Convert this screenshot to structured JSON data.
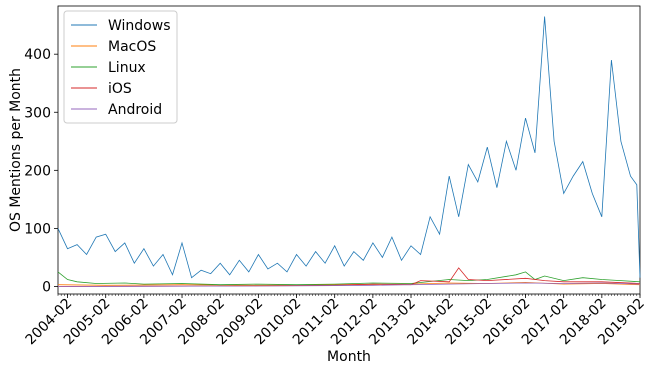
{
  "chart_data": {
    "type": "line",
    "title": "",
    "xlabel": "Month",
    "ylabel": "OS Mentions per Month",
    "x_tick_labels": [
      "2004-02",
      "2005-02",
      "2006-02",
      "2007-02",
      "2008-02",
      "2009-02",
      "2010-02",
      "2011-02",
      "2012-02",
      "2013-02",
      "2014-02",
      "2015-02",
      "2016-02",
      "2017-02",
      "2018-02",
      "2019-02"
    ],
    "x_range": [
      "2003-11",
      "2019-02"
    ],
    "ylim": [
      -13,
      483
    ],
    "y_ticks": [
      0,
      100,
      200,
      300,
      400
    ],
    "legend_position": "top-left",
    "grid": false,
    "series": [
      {
        "name": "Windows",
        "color": "#1f77b4",
        "points": [
          [
            "2003-11",
            100
          ],
          [
            "2004-02",
            65
          ],
          [
            "2004-05",
            72
          ],
          [
            "2004-08",
            55
          ],
          [
            "2004-11",
            85
          ],
          [
            "2005-02",
            90
          ],
          [
            "2005-05",
            60
          ],
          [
            "2005-08",
            75
          ],
          [
            "2005-11",
            40
          ],
          [
            "2006-02",
            65
          ],
          [
            "2006-05",
            35
          ],
          [
            "2006-08",
            55
          ],
          [
            "2006-11",
            20
          ],
          [
            "2007-02",
            75
          ],
          [
            "2007-05",
            15
          ],
          [
            "2007-08",
            28
          ],
          [
            "2007-11",
            22
          ],
          [
            "2008-02",
            40
          ],
          [
            "2008-05",
            20
          ],
          [
            "2008-08",
            45
          ],
          [
            "2008-11",
            25
          ],
          [
            "2009-02",
            55
          ],
          [
            "2009-05",
            30
          ],
          [
            "2009-08",
            40
          ],
          [
            "2009-11",
            25
          ],
          [
            "2010-02",
            55
          ],
          [
            "2010-05",
            35
          ],
          [
            "2010-08",
            60
          ],
          [
            "2010-11",
            40
          ],
          [
            "2011-02",
            70
          ],
          [
            "2011-05",
            35
          ],
          [
            "2011-08",
            60
          ],
          [
            "2011-11",
            45
          ],
          [
            "2012-02",
            75
          ],
          [
            "2012-05",
            50
          ],
          [
            "2012-08",
            85
          ],
          [
            "2012-11",
            45
          ],
          [
            "2013-02",
            70
          ],
          [
            "2013-05",
            55
          ],
          [
            "2013-08",
            120
          ],
          [
            "2013-11",
            90
          ],
          [
            "2014-02",
            190
          ],
          [
            "2014-05",
            120
          ],
          [
            "2014-08",
            210
          ],
          [
            "2014-11",
            180
          ],
          [
            "2015-02",
            240
          ],
          [
            "2015-05",
            170
          ],
          [
            "2015-08",
            250
          ],
          [
            "2015-11",
            200
          ],
          [
            "2016-02",
            290
          ],
          [
            "2016-05",
            230
          ],
          [
            "2016-08",
            465
          ],
          [
            "2016-11",
            250
          ],
          [
            "2017-02",
            160
          ],
          [
            "2017-05",
            190
          ],
          [
            "2017-08",
            215
          ],
          [
            "2017-11",
            160
          ],
          [
            "2018-02",
            120
          ],
          [
            "2018-05",
            390
          ],
          [
            "2018-08",
            250
          ],
          [
            "2018-11",
            190
          ],
          [
            "2019-01",
            175
          ],
          [
            "2019-02",
            15
          ]
        ]
      },
      {
        "name": "MacOS",
        "color": "#ff7f0e",
        "points": [
          [
            "2003-11",
            3
          ],
          [
            "2005-02",
            2
          ],
          [
            "2007-02",
            3
          ],
          [
            "2009-02",
            2
          ],
          [
            "2011-02",
            3
          ],
          [
            "2013-02",
            4
          ],
          [
            "2014-02",
            6
          ],
          [
            "2015-02",
            5
          ],
          [
            "2016-02",
            7
          ],
          [
            "2017-02",
            4
          ],
          [
            "2018-02",
            5
          ],
          [
            "2019-02",
            3
          ]
        ]
      },
      {
        "name": "Linux",
        "color": "#2ca02c",
        "points": [
          [
            "2003-11",
            25
          ],
          [
            "2004-02",
            12
          ],
          [
            "2004-05",
            8
          ],
          [
            "2004-11",
            5
          ],
          [
            "2005-08",
            6
          ],
          [
            "2006-02",
            4
          ],
          [
            "2007-02",
            5
          ],
          [
            "2008-02",
            3
          ],
          [
            "2009-02",
            4
          ],
          [
            "2010-02",
            3
          ],
          [
            "2011-02",
            4
          ],
          [
            "2012-02",
            6
          ],
          [
            "2013-02",
            5
          ],
          [
            "2014-02",
            12
          ],
          [
            "2014-08",
            10
          ],
          [
            "2015-02",
            12
          ],
          [
            "2015-11",
            20
          ],
          [
            "2016-02",
            25
          ],
          [
            "2016-05",
            12
          ],
          [
            "2016-08",
            18
          ],
          [
            "2017-02",
            10
          ],
          [
            "2017-08",
            15
          ],
          [
            "2018-02",
            12
          ],
          [
            "2018-08",
            10
          ],
          [
            "2019-02",
            8
          ]
        ]
      },
      {
        "name": "iOS",
        "color": "#d62728",
        "points": [
          [
            "2003-11",
            0
          ],
          [
            "2009-02",
            1
          ],
          [
            "2011-02",
            2
          ],
          [
            "2012-02",
            4
          ],
          [
            "2013-02",
            3
          ],
          [
            "2013-05",
            10
          ],
          [
            "2014-02",
            8
          ],
          [
            "2014-05",
            32
          ],
          [
            "2014-08",
            12
          ],
          [
            "2015-02",
            10
          ],
          [
            "2016-02",
            14
          ],
          [
            "2016-08",
            10
          ],
          [
            "2017-02",
            8
          ],
          [
            "2018-02",
            8
          ],
          [
            "2019-02",
            5
          ]
        ]
      },
      {
        "name": "Android",
        "color": "#9467bd",
        "points": [
          [
            "2003-11",
            0
          ],
          [
            "2010-02",
            1
          ],
          [
            "2012-02",
            2
          ],
          [
            "2014-02",
            4
          ],
          [
            "2015-02",
            5
          ],
          [
            "2016-02",
            6
          ],
          [
            "2017-02",
            5
          ],
          [
            "2018-02",
            6
          ],
          [
            "2019-02",
            4
          ]
        ]
      }
    ]
  }
}
